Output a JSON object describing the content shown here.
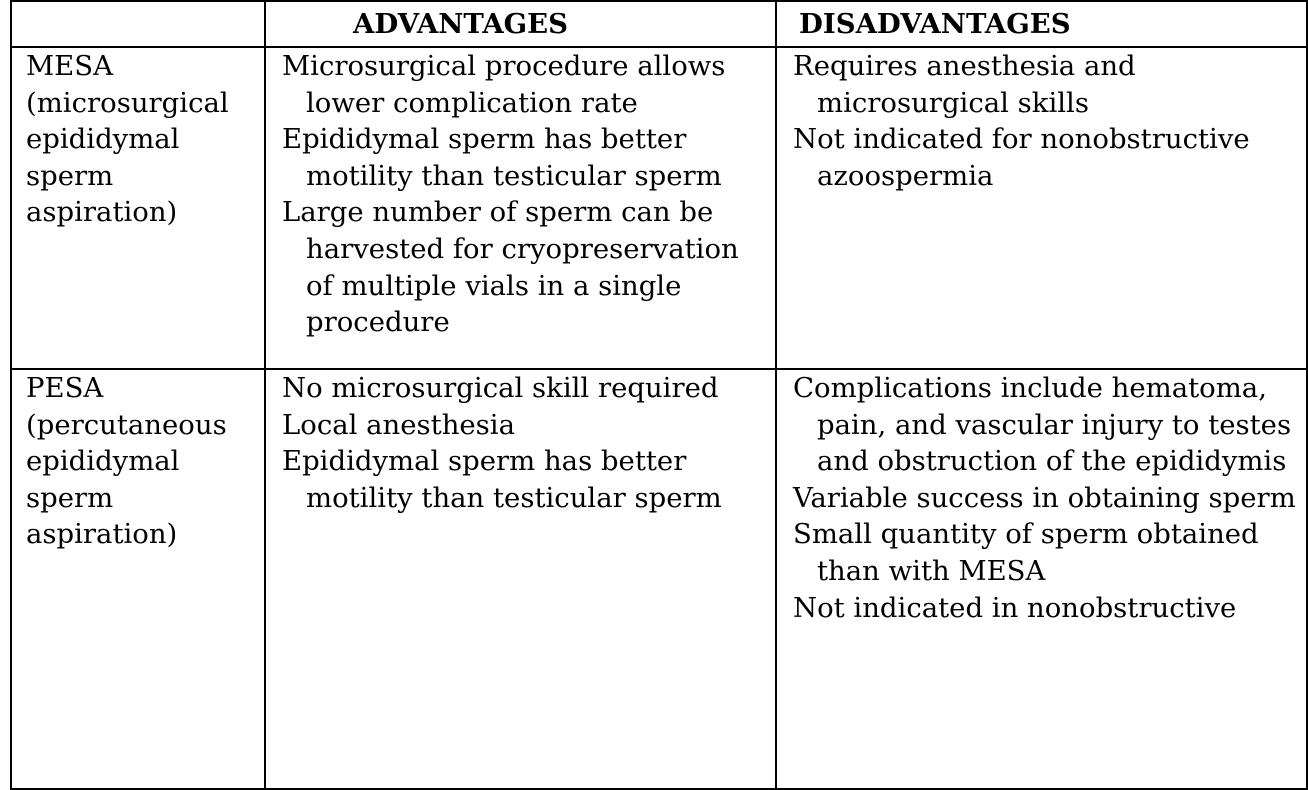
{
  "table": {
    "headers": {
      "advantages": "ADVANTAGES",
      "disadvantages": "DISADVANTAGES"
    },
    "rows": [
      {
        "procedure_lines": [
          "MESA",
          "(microsurgical",
          "epididymal",
          "sperm",
          "aspiration)"
        ],
        "advantages": [
          "Microsurgical procedure allows lower complication rate",
          "Epididymal sperm has better motility than testicular sperm",
          "Large number of sperm can be harvested for cryopreservation of multiple vials in a single procedure"
        ],
        "disadvantages": [
          "Requires anesthesia and microsurgical skills",
          "Not indicated for nonobstructive azoospermia"
        ]
      },
      {
        "procedure_lines": [
          "PESA",
          "(percutaneous",
          "epididymal",
          "sperm",
          "aspiration)"
        ],
        "advantages": [
          "No microsurgical skill required",
          "Local anesthesia",
          "Epididymal sperm has better motility than testicular sperm"
        ],
        "disadvantages": [
          "Complications include hematoma, pain, and vascular injury to testes and obstruction of the epididymis",
          "Variable success in obtaining sperm",
          "Small quantity of sperm obtained than with MESA",
          "Not indicated in nonobstructive"
        ]
      }
    ]
  }
}
